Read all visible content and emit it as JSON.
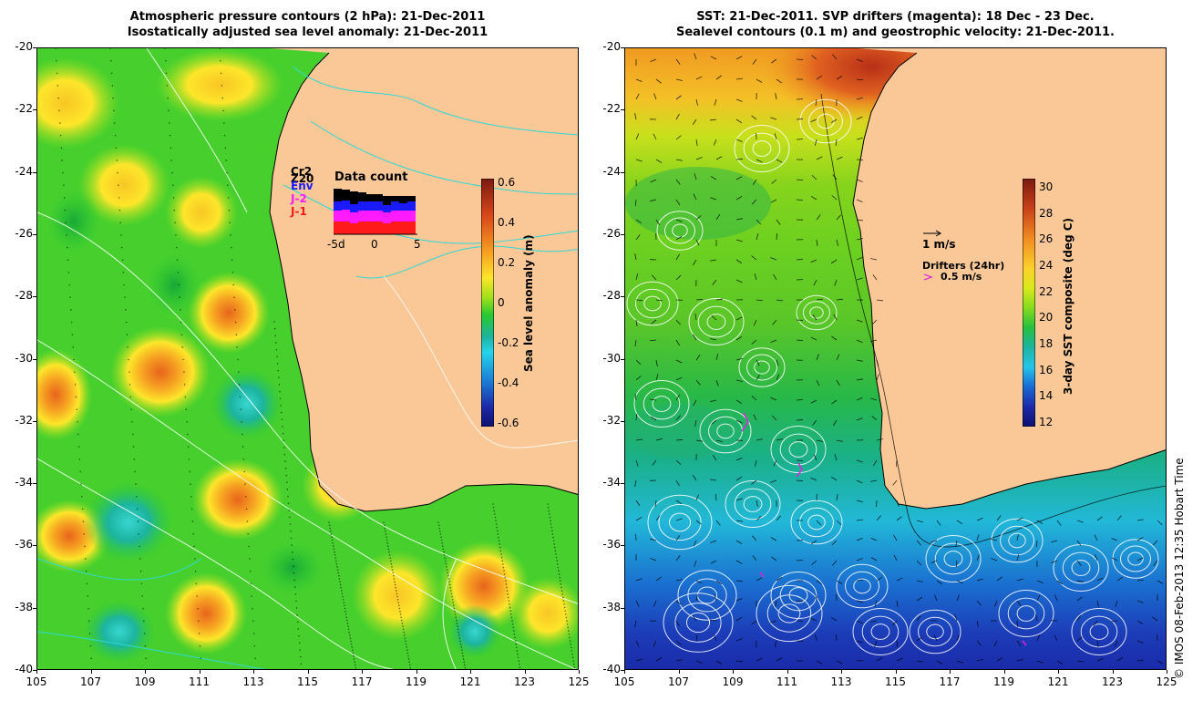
{
  "left_panel": {
    "title_line1": "Atmospheric pressure contours (2 hPa): 21-Dec-2011",
    "title_line2": "Isostatically adjusted sea level anomaly: 21-Dec-2011",
    "colorbar_label": "Sea level anomaly (m)",
    "colorbar_ticks": [
      "0.6",
      "0.4",
      "0.2",
      "0",
      "-0.2",
      "-0.4",
      "-0.6"
    ],
    "colorbar_colors": [
      "#7a1a10",
      "#d9481a",
      "#f6a122",
      "#fde62a",
      "#a0e01c",
      "#28c832",
      "#1cb4a0",
      "#26d4ea",
      "#1a7ad4",
      "#1c2aa8",
      "#0d1070"
    ],
    "satellites": [
      {
        "name": "Cr2",
        "color": "#000000"
      },
      {
        "name": "Z20",
        "color": "#000000"
      },
      {
        "name": "Env",
        "color": "#1a1aff"
      },
      {
        "name": "J-2",
        "color": "#ff1aff"
      },
      {
        "name": "J-1",
        "color": "#ff1a1a"
      }
    ],
    "data_count": {
      "title": "Data count",
      "x_ticks": [
        "-5d",
        "0",
        "5"
      ]
    }
  },
  "right_panel": {
    "title_line1": "SST: 21-Dec-2011. SVP drifters (magenta): 18 Dec - 23 Dec.",
    "title_line2": "Sealevel contours (0.1 m) and geostrophic velocity: 21-Dec-2011.",
    "colorbar_label": "3-day SST composite (deg C)",
    "colorbar_ticks": [
      "30",
      "28",
      "26",
      "24",
      "22",
      "20",
      "18",
      "16",
      "14",
      "12"
    ],
    "colorbar_colors": [
      "#7a1a10",
      "#c8401a",
      "#f08a22",
      "#fdd02a",
      "#d9ea1c",
      "#86dc1c",
      "#28c040",
      "#1cb4a0",
      "#26c4ea",
      "#1a6ad4",
      "#1c2aa8",
      "#0d1070"
    ],
    "velocity_scale": "1 m/s",
    "drifters_label": "Drifters (24hr)",
    "drifter_scale": "0.5 m/s"
  },
  "map": {
    "y_ticks": [
      "-20",
      "-22",
      "-24",
      "-26",
      "-28",
      "-30",
      "-32",
      "-34",
      "-36",
      "-38",
      "-40"
    ],
    "x_ticks": [
      "105",
      "107",
      "109",
      "111",
      "113",
      "115",
      "117",
      "119",
      "121",
      "123",
      "125"
    ],
    "land_color": "#f9c896"
  },
  "credit": "© IMOS 08-Feb-2013 12:35 Hobart Time"
}
